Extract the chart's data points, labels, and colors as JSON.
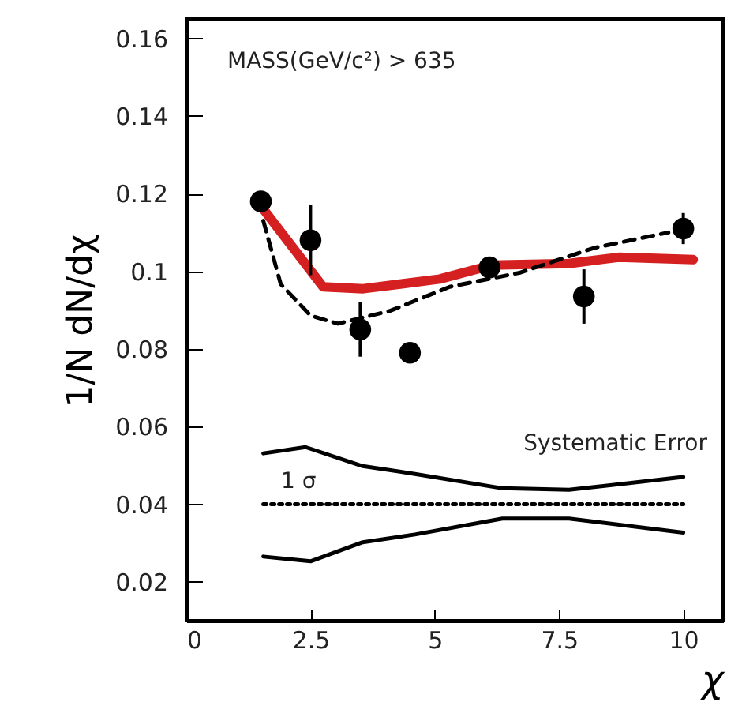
{
  "chart_data": {
    "type": "scatter",
    "xlabel": "χ",
    "ylabel": "1/N dN/dχ",
    "xlim": [
      0,
      10.8
    ],
    "ylim": [
      0.01,
      0.165
    ],
    "xticks": [
      0,
      2.5,
      5,
      7.5,
      10
    ],
    "yticks": [
      0.02,
      0.04,
      0.06,
      0.08,
      0.1,
      0.12,
      0.14,
      0.16
    ],
    "annotations": [
      "MASS(GeV/c²) > 635",
      "Systematic Error",
      "1 σ"
    ],
    "series": [
      {
        "type": "line",
        "color": "#d42020",
        "x": [
          1.55,
          2.75,
          3.56,
          5.1,
          6.15,
          7.7,
          8.7,
          10.2
        ],
        "values": [
          0.116,
          0.096,
          0.0955,
          0.098,
          0.1016,
          0.102,
          0.1036,
          0.103
        ]
      },
      {
        "type": "line",
        "color": "#000000",
        "line_style": "dashed",
        "x": [
          1.55,
          1.9,
          2.5,
          3.05,
          4.1,
          5.3,
          6.7,
          8.2,
          9.7
        ],
        "values": [
          0.113,
          0.0967,
          0.0886,
          0.0865,
          0.0898,
          0.096,
          0.0996,
          0.106,
          0.11
        ]
      },
      {
        "type": "line",
        "color": "#000000",
        "x": [
          1.55,
          2.4,
          3.55,
          4.6,
          6.36,
          7.7,
          10.0
        ],
        "values": [
          0.0531,
          0.0547,
          0.0498,
          0.0478,
          0.0441,
          0.0437,
          0.047
        ]
      },
      {
        "type": "line",
        "color": "#000000",
        "x": [
          1.55,
          2.5,
          3.55,
          4.6,
          6.36,
          7.7,
          10.0
        ],
        "values": [
          0.0265,
          0.0253,
          0.0302,
          0.0322,
          0.0363,
          0.0363,
          0.0327
        ]
      },
      {
        "type": "line",
        "color": "#000000",
        "line_style": "dotted",
        "x": [
          1.55,
          10.0
        ],
        "values": [
          0.04,
          0.04
        ]
      },
      {
        "color": "#000000",
        "marker": "circle",
        "x": [
          1.5,
          2.5,
          3.5,
          4.5,
          6.1,
          8,
          10
        ],
        "values": [
          0.118,
          0.108,
          0.085,
          0.079,
          0.101,
          0.0935,
          0.111
        ],
        "errors": [
          null,
          0.009,
          0.007,
          null,
          null,
          0.007,
          0.004
        ]
      }
    ]
  }
}
